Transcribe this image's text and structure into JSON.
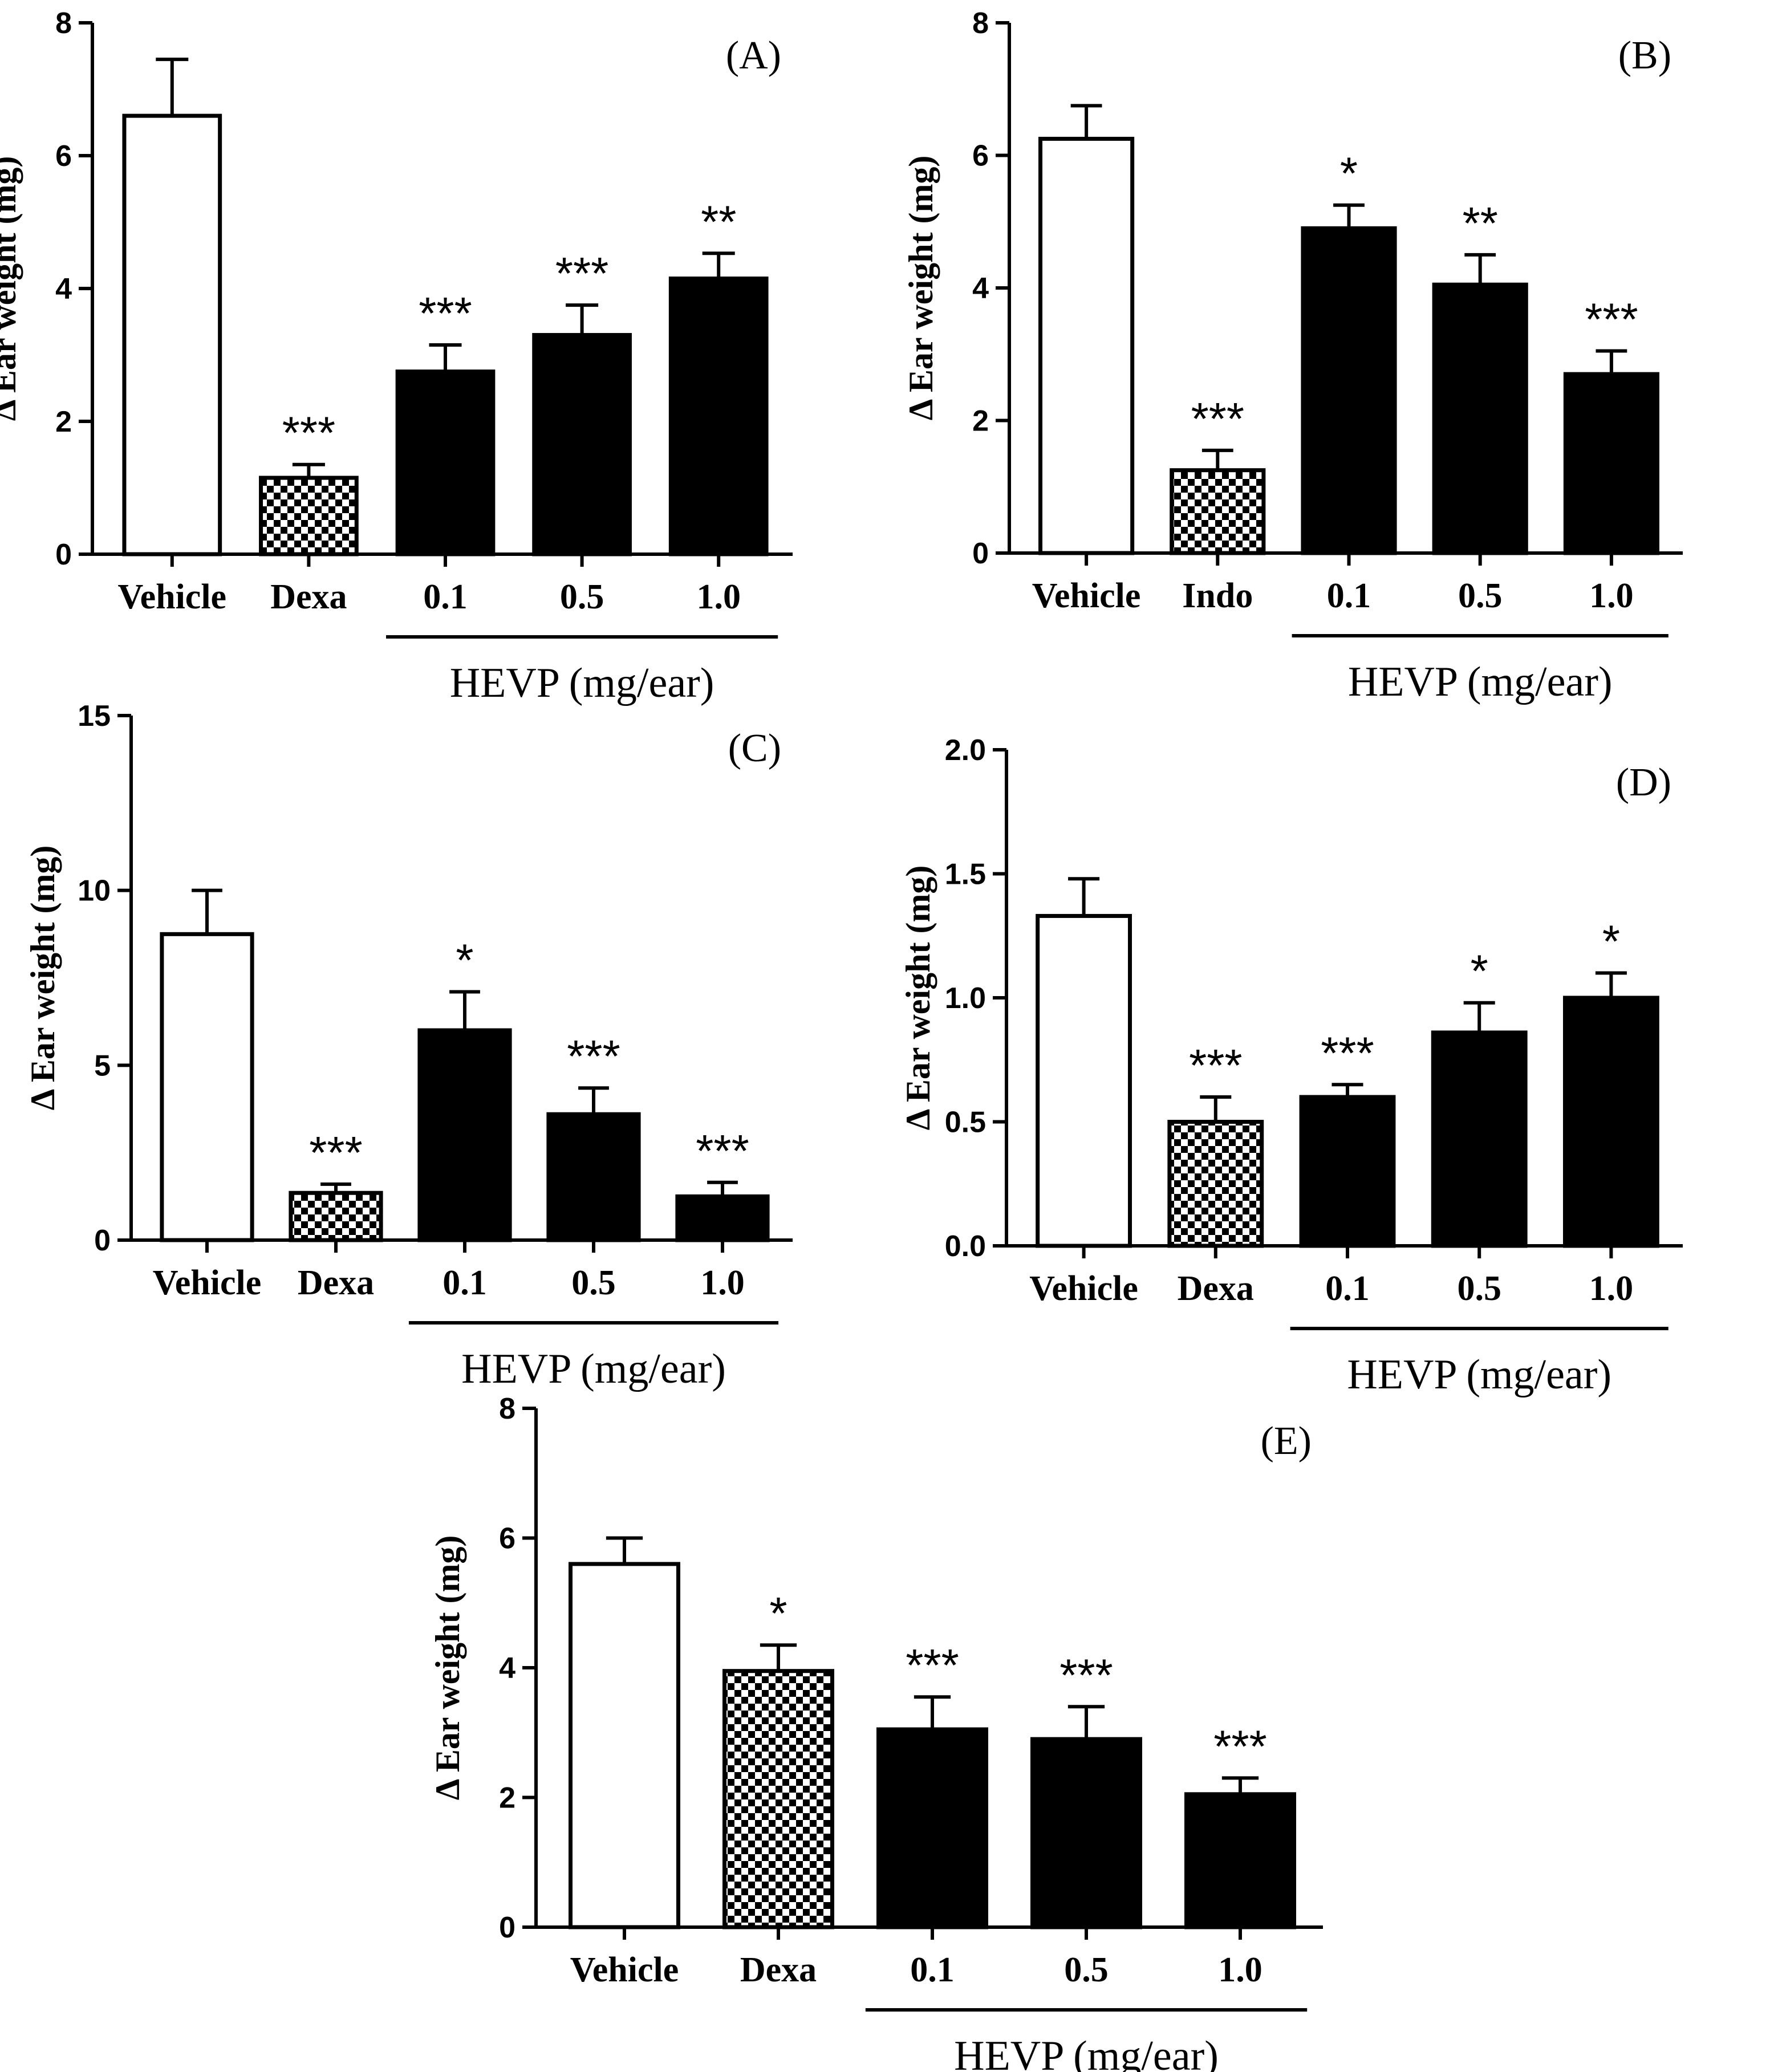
{
  "chart_data": [
    {
      "type": "bar",
      "panel_label": "(A)",
      "categories": [
        "Vehicle",
        "Dexa",
        "0.1",
        "0.5",
        "1.0"
      ],
      "values": [
        6.6,
        1.15,
        2.75,
        3.3,
        4.15
      ],
      "errors": [
        0.85,
        0.2,
        0.4,
        0.45,
        0.38
      ],
      "fills": [
        "open",
        "checker",
        "solid",
        "solid",
        "solid"
      ],
      "significance": [
        "",
        "***",
        "***",
        "***",
        "**"
      ],
      "ylabel": "Δ Ear weight (mg)",
      "ylim": [
        0,
        8
      ],
      "yticks": [
        "0",
        "2",
        "4",
        "6",
        "8"
      ],
      "group_label": "HEVP (mg/ear)",
      "group_start_index": 2
    },
    {
      "type": "bar",
      "panel_label": "(B)",
      "categories": [
        "Vehicle",
        "Indo",
        "0.1",
        "0.5",
        "1.0"
      ],
      "values": [
        6.25,
        1.25,
        4.9,
        4.05,
        2.7
      ],
      "errors": [
        0.5,
        0.3,
        0.35,
        0.45,
        0.35
      ],
      "fills": [
        "open",
        "checker",
        "solid",
        "solid",
        "solid"
      ],
      "significance": [
        "",
        "***",
        "*",
        "**",
        "***"
      ],
      "ylabel": "Δ Ear weight (mg)",
      "ylim": [
        0,
        8
      ],
      "yticks": [
        "0",
        "2",
        "4",
        "6",
        "8"
      ],
      "group_label": "HEVP (mg/ear)",
      "group_start_index": 2
    },
    {
      "type": "bar",
      "panel_label": "(C)",
      "categories": [
        "Vehicle",
        "Dexa",
        "0.1",
        "0.5",
        "1.0"
      ],
      "values": [
        8.75,
        1.35,
        6.0,
        3.6,
        1.25
      ],
      "errors": [
        1.25,
        0.25,
        1.1,
        0.75,
        0.4
      ],
      "fills": [
        "open",
        "checker",
        "solid",
        "solid",
        "solid"
      ],
      "significance": [
        "",
        "***",
        "*",
        "***",
        "***"
      ],
      "ylabel": "Δ Ear weight (mg)",
      "ylim": [
        0,
        15
      ],
      "yticks": [
        "0",
        "5",
        "10",
        "15"
      ],
      "group_label": "HEVP (mg/ear)",
      "group_start_index": 2
    },
    {
      "type": "bar",
      "panel_label": "(D)",
      "categories": [
        "Vehicle",
        "Dexa",
        "0.1",
        "0.5",
        "1.0"
      ],
      "values": [
        1.33,
        0.5,
        0.6,
        0.86,
        1.0
      ],
      "errors": [
        0.15,
        0.1,
        0.05,
        0.12,
        0.1
      ],
      "fills": [
        "open",
        "checker",
        "solid",
        "solid",
        "solid"
      ],
      "significance": [
        "",
        "***",
        "***",
        "*",
        "*"
      ],
      "ylabel": "Δ Ear weight (mg)",
      "ylim": [
        0,
        2.0
      ],
      "yticks": [
        "0.0",
        "0.5",
        "1.0",
        "1.5",
        "2.0"
      ],
      "group_label": "HEVP (mg/ear)",
      "group_start_index": 2
    },
    {
      "type": "bar",
      "panel_label": "(E)",
      "categories": [
        "Vehicle",
        "Dexa",
        "0.1",
        "0.5",
        "1.0"
      ],
      "values": [
        5.6,
        3.95,
        3.05,
        2.9,
        2.05
      ],
      "errors": [
        0.4,
        0.4,
        0.5,
        0.5,
        0.25
      ],
      "fills": [
        "open",
        "checker",
        "solid",
        "solid",
        "solid"
      ],
      "significance": [
        "",
        "*",
        "***",
        "***",
        "***"
      ],
      "ylabel": "Δ Ear weight (mg)",
      "ylim": [
        0,
        8
      ],
      "yticks": [
        "0",
        "2",
        "4",
        "6",
        "8"
      ],
      "group_label": "HEVP (mg/ear)",
      "group_start_index": 2
    }
  ]
}
